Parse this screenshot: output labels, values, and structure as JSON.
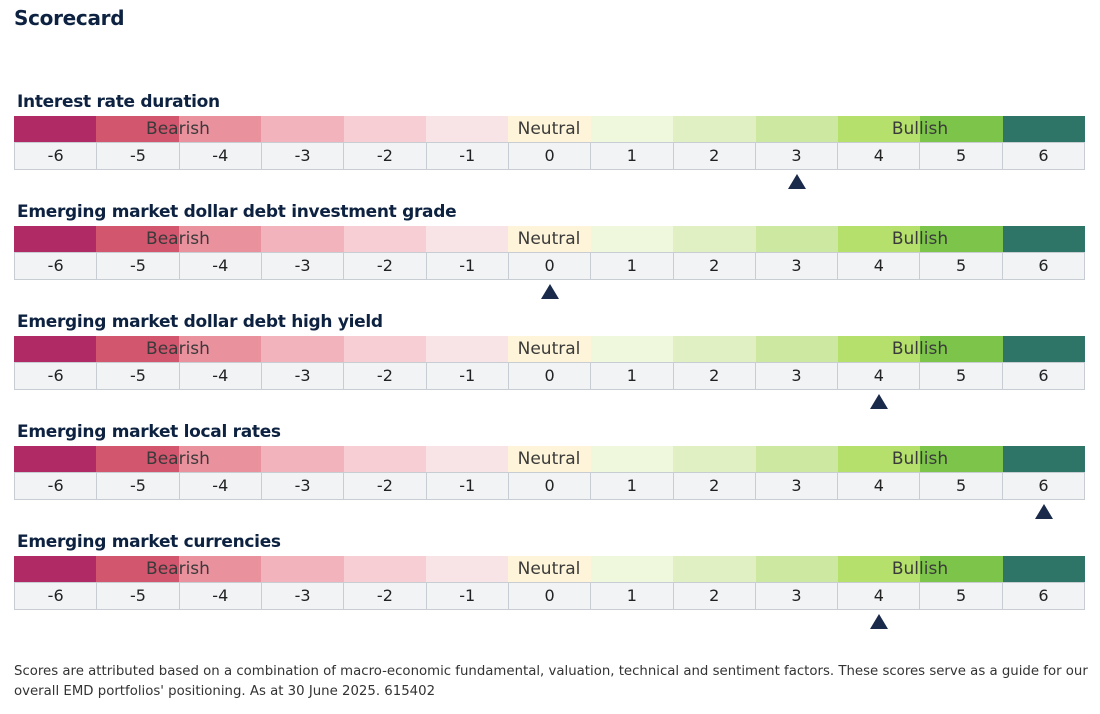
{
  "title": "Scorecard",
  "labels": {
    "bearish": "Bearish",
    "neutral": "Neutral",
    "bullish": "Bullish"
  },
  "scale": [
    "-6",
    "-5",
    "-4",
    "-3",
    "-2",
    "-1",
    "0",
    "1",
    "2",
    "3",
    "4",
    "5",
    "6"
  ],
  "colors": [
    "#b02b66",
    "#d2566e",
    "#ea919e",
    "#f3b3bd",
    "#f6ced4",
    "#f8e3e6",
    "#fdf4d9",
    "#eff7dd",
    "#e1f0c2",
    "#cde8a0",
    "#b5e06c",
    "#7cc54a",
    "#2e7567"
  ],
  "rows": [
    {
      "title": "Interest rate duration",
      "score": 3
    },
    {
      "title": "Emerging market dollar debt investment grade",
      "score": 0
    },
    {
      "title": "Emerging market dollar debt high yield",
      "score": 4
    },
    {
      "title": "Emerging market local rates",
      "score": 6
    },
    {
      "title": "Emerging market currencies",
      "score": 4
    }
  ],
  "footnote": "Scores are attributed based on a combination of macro-economic fundamental, valuation, technical and sentiment factors. These scores serve as a guide for our overall EMD portfolios' positioning. As at 30 June 2025. 615402"
}
